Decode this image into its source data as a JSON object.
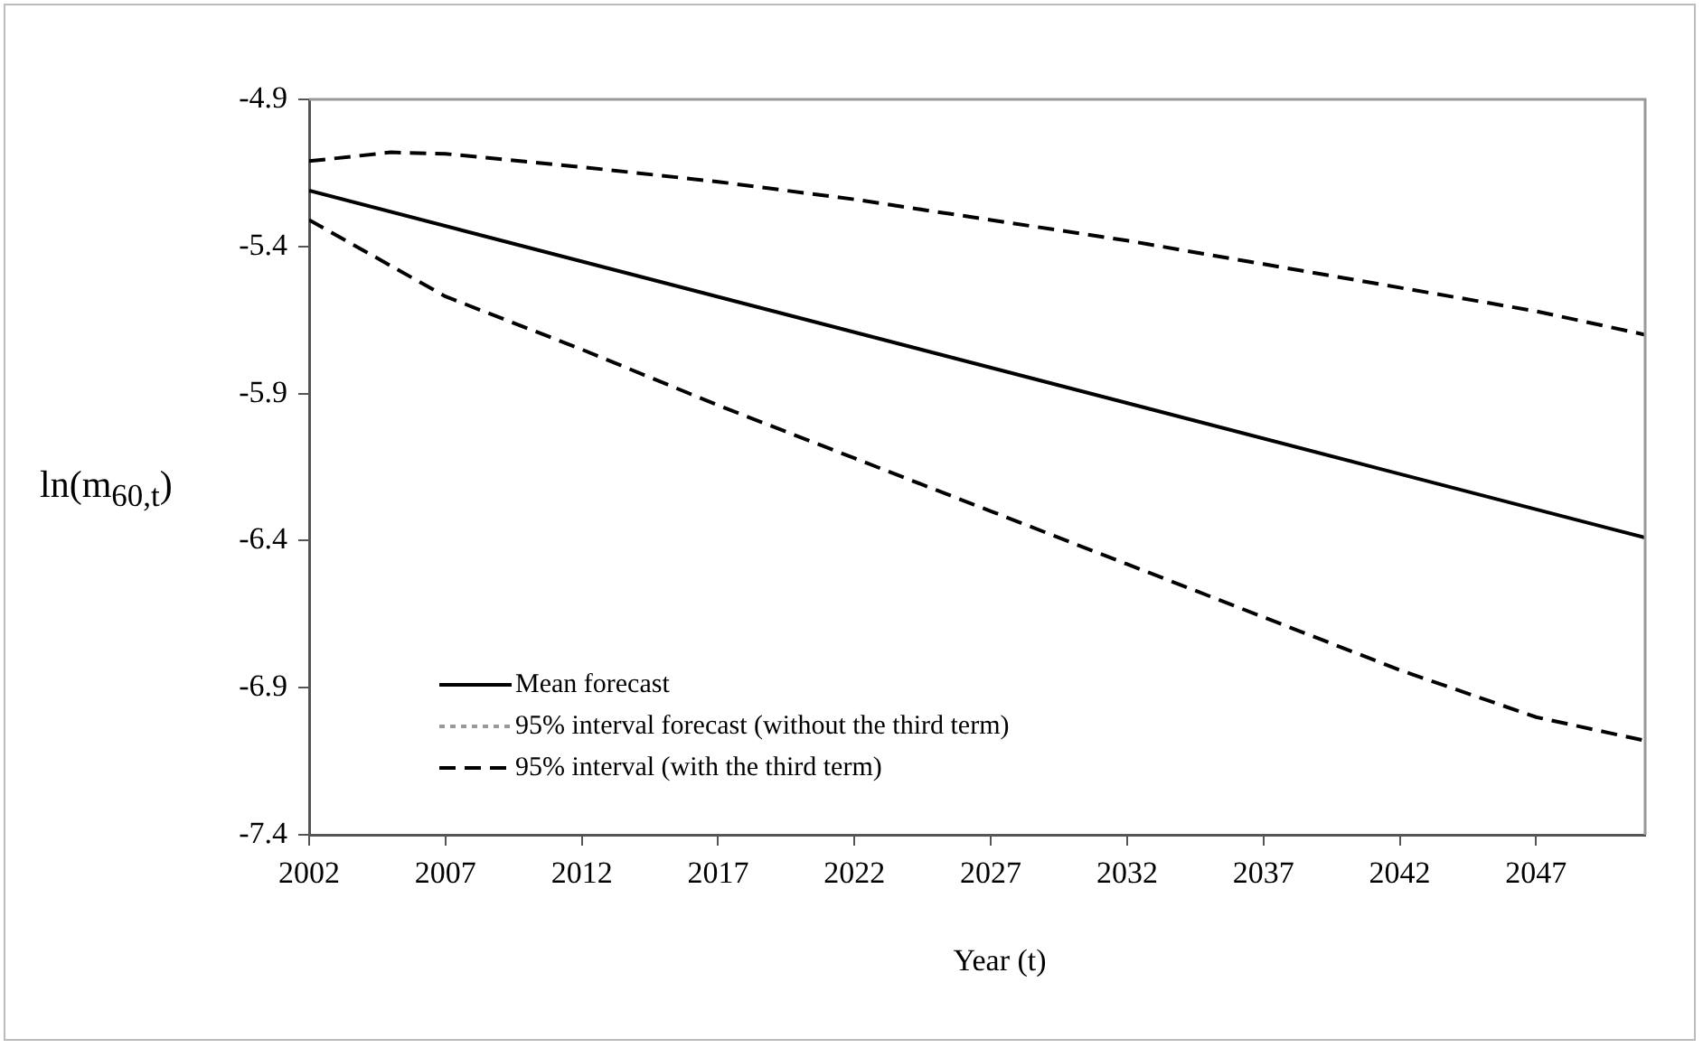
{
  "chart_data": {
    "type": "line",
    "xlabel": "Year (t)",
    "ylabel": "ln(m$_{60,t}$)",
    "xlim": [
      2002,
      2051
    ],
    "xticks": [
      2002,
      2007,
      2012,
      2017,
      2022,
      2027,
      2032,
      2037,
      2042,
      2047
    ],
    "ylim": [
      -7.4,
      -4.9
    ],
    "yticks": [
      -7.4,
      -6.9,
      -6.4,
      -5.9,
      -5.4,
      -4.9
    ],
    "grid": false,
    "legend": "bottom left",
    "marker": "none",
    "series": [
      {
        "name": "Mean forecast",
        "color": "#000000",
        "line_style": "solid",
        "x": [
          2002,
          2051
        ],
        "values": [
          -5.21,
          -6.39
        ]
      },
      {
        "name": "95% interval forecast (without the third term)",
        "color": "#999999",
        "line_style": "dotted"
      },
      {
        "name": "95% interval (with the third term)",
        "color": "#000000",
        "line_style": "dashed",
        "x": [
          2002,
          2005,
          2007,
          2012,
          2017,
          2022,
          2027,
          2032,
          2037,
          2042,
          2047,
          2051
        ],
        "values": [
          -5.11,
          -5.08,
          -5.085,
          -5.13,
          -5.18,
          -5.24,
          -5.31,
          -5.38,
          -5.46,
          -5.54,
          -5.62,
          -5.7
        ]
      },
      {
        "color": "#000000",
        "line_style": "dashed",
        "x": [
          2002,
          2007,
          2012,
          2017,
          2022,
          2027,
          2032,
          2037,
          2042,
          2047,
          2051
        ],
        "values": [
          -5.31,
          -5.57,
          -5.75,
          -5.94,
          -6.12,
          -6.3,
          -6.48,
          -6.66,
          -6.84,
          -7.0,
          -7.08
        ]
      }
    ]
  }
}
